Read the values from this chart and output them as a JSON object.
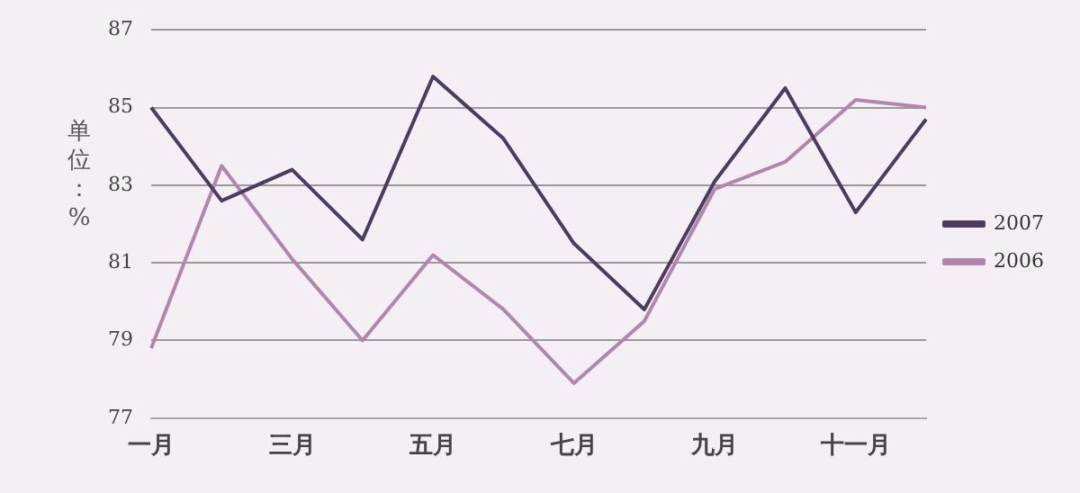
{
  "chart_data": {
    "type": "line",
    "ylabel": "单位：%",
    "categories": [
      "一月",
      null,
      "三月",
      null,
      "五月",
      null,
      "七月",
      null,
      "九月",
      null,
      "十一月",
      null
    ],
    "series": [
      {
        "name": "2007",
        "color": "#4b3c5f",
        "values": [
          85.0,
          82.6,
          83.4,
          81.6,
          85.8,
          84.2,
          81.5,
          79.8,
          83.1,
          85.5,
          82.3,
          84.7
        ]
      },
      {
        "name": "2006",
        "color": "#b385ac",
        "values": [
          78.8,
          83.5,
          81.1,
          79.0,
          81.2,
          79.8,
          77.9,
          79.5,
          82.9,
          83.6,
          85.2,
          85.0
        ]
      }
    ],
    "ylim": [
      77,
      87
    ],
    "yticks": [
      77,
      79,
      81,
      83,
      85,
      87
    ],
    "grid": "y",
    "legend": "right",
    "marker": "none",
    "line_style": "solid"
  }
}
